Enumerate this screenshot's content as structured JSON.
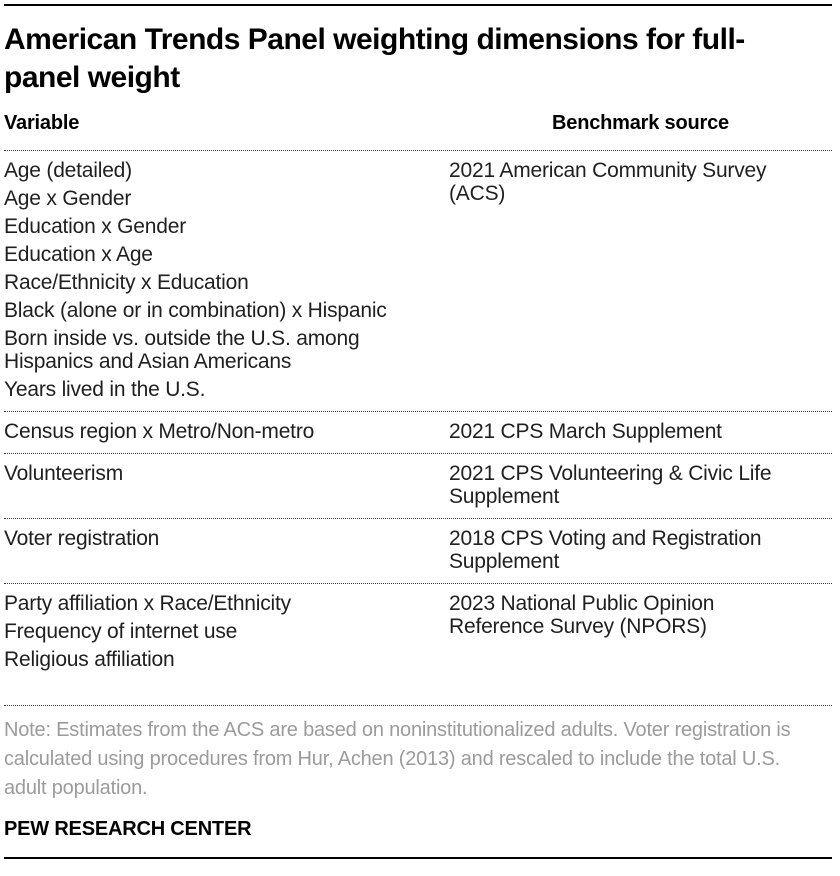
{
  "colors": {
    "title_text": "#000000",
    "body_text": "#1f1f1f",
    "note_text": "#9b9b9b",
    "rule": "#000000",
    "dotted_divider": "#3d3d3d"
  },
  "header": {
    "title_display": "American Trends Panel weighting dimensions for full-\npanel weight"
  },
  "chart_data": {
    "type": "table",
    "title": "American Trends Panel weighting dimensions for full-panel weight",
    "columns": [
      "Variable",
      "Benchmark source"
    ],
    "rows": [
      {
        "variables": [
          "Age (detailed)",
          "Age x Gender",
          "Education x Gender",
          "Education x Age",
          "Race/Ethnicity x Education",
          "Black (alone or in combination) x Hispanic",
          "Born inside vs. outside the U.S. among\nHispanics and Asian Americans",
          "Years lived in the U.S."
        ],
        "benchmark_source": "2021 American Community Survey\n(ACS)"
      },
      {
        "variables": [
          "Census region x Metro/Non-metro"
        ],
        "benchmark_source": "2021 CPS March Supplement"
      },
      {
        "variables": [
          "Volunteerism"
        ],
        "benchmark_source": "2021 CPS Volunteering & Civic Life\nSupplement"
      },
      {
        "variables": [
          "Voter registration"
        ],
        "benchmark_source": "2018 CPS Voting and Registration\nSupplement"
      },
      {
        "variables": [
          "Party affiliation x Race/Ethnicity",
          "Frequency of internet use",
          "Religious affiliation"
        ],
        "benchmark_source": "2023 National Public Opinion\nReference Survey (NPORS)"
      }
    ],
    "note": "Note: Estimates from the ACS are based on noninstitutionalized adults. Voter registration is calculated using procedures from Hur, Achen (2013) and rescaled to include the total U.S. adult population.",
    "source": "PEW RESEARCH CENTER"
  },
  "note_display": "Note: Estimates from the ACS are based on noninstitutionalized adults. Voter registration is\ncalculated using procedures from Hur, Achen (2013) and rescaled to include the total U.S.\nadult population."
}
